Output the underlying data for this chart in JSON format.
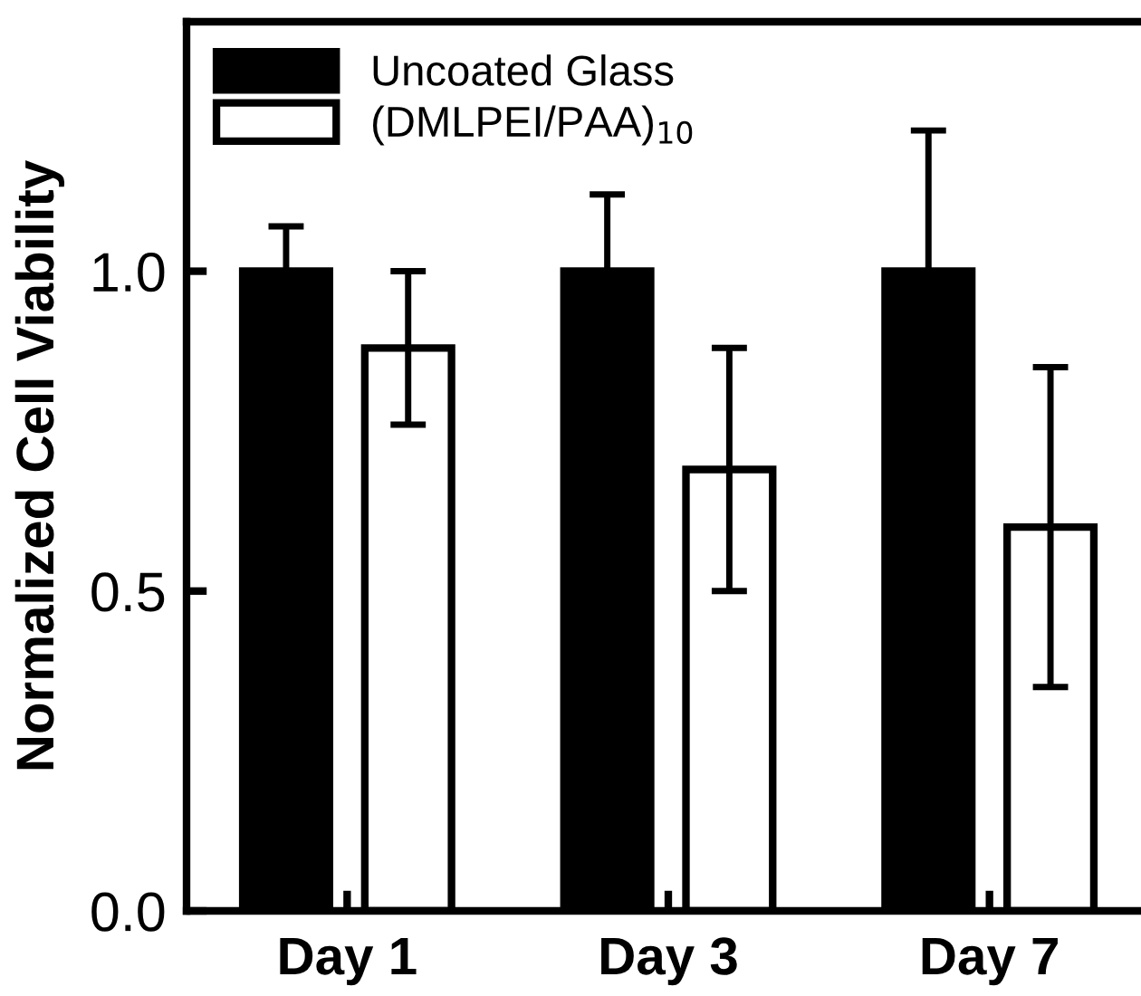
{
  "chart_data": {
    "type": "bar",
    "ylabel": "Normalized Cell Viability",
    "categories": [
      "Day 1",
      "Day 3",
      "Day 7"
    ],
    "series": [
      {
        "name": "Uncoated Glass",
        "color": "#000000",
        "values": [
          1.0,
          1.0,
          1.0
        ],
        "errors": [
          0.07,
          0.12,
          0.22
        ]
      },
      {
        "name": "(DMLPEI/PAA)$_{10}$",
        "color": "#ffffff",
        "values": [
          0.88,
          0.69,
          0.6
        ],
        "errors": [
          0.12,
          0.19,
          0.25
        ]
      }
    ],
    "ylim": [
      0,
      1.39
    ],
    "yticks": [
      {
        "value": 0,
        "label": "0.0"
      },
      {
        "value": 0.5,
        "label": "0.5"
      },
      {
        "value": 1,
        "label": "1.0"
      }
    ],
    "legend": "top left",
    "grid": false
  }
}
